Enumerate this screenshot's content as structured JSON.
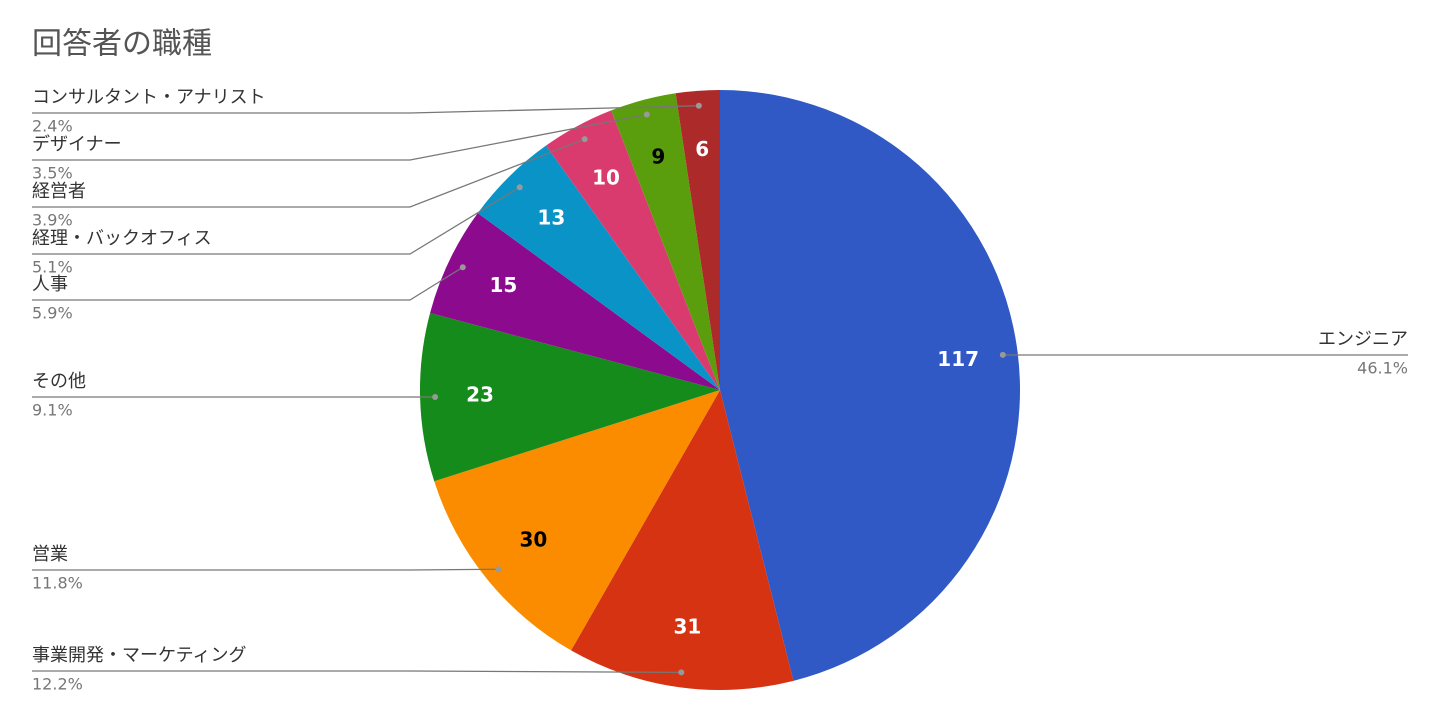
{
  "chart_data": {
    "type": "pie",
    "title": "回答者の職種",
    "categories": [
      "エンジニア",
      "事業開発・マーケティング",
      "営業",
      "その他",
      "人事",
      "経理・バックオフィス",
      "経営者",
      "デザイナー",
      "コンサルタント・アナリスト"
    ],
    "values": [
      117,
      31,
      30,
      23,
      15,
      13,
      10,
      9,
      6
    ],
    "percent_labels": [
      "46.1%",
      "12.2%",
      "11.8%",
      "9.1%",
      "5.9%",
      "5.1%",
      "3.9%",
      "3.5%",
      "2.4%"
    ],
    "colors": [
      "#3059c6",
      "#d63312",
      "#fb8c00",
      "#148b1a",
      "#8b0a8e",
      "#0a93c7",
      "#d93b6e",
      "#5a9e0e",
      "#ad2a2b"
    ],
    "value_label_colors": [
      "#ffffff",
      "#ffffff",
      "#000000",
      "#ffffff",
      "#ffffff",
      "#ffffff",
      "#ffffff",
      "#000000",
      "#ffffff"
    ]
  }
}
